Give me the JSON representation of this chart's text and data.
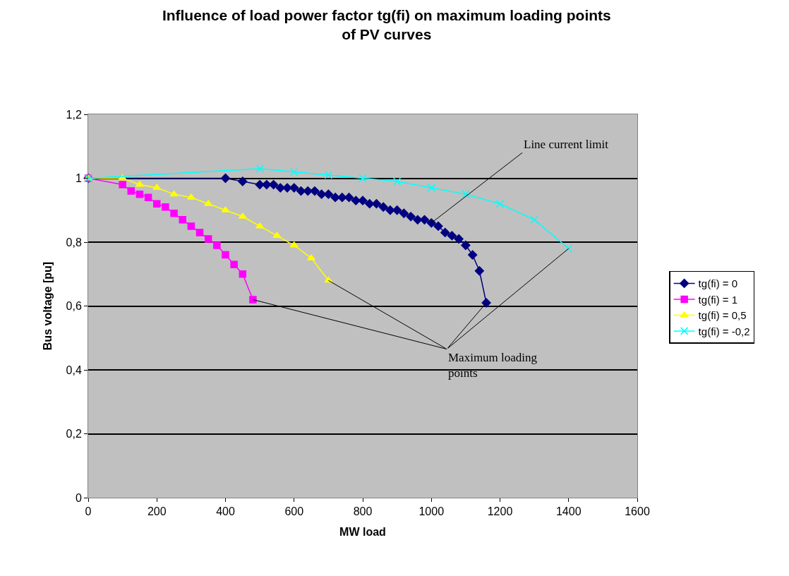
{
  "chart_data": {
    "type": "line",
    "title": "Influence of load power factor tg(fi) on maximum loading points\nof PV curves",
    "xlabel": "MW load",
    "ylabel": "Bus voltage [pu]",
    "xlim": [
      0,
      1600
    ],
    "xticks": [
      0,
      200,
      400,
      600,
      800,
      1000,
      1200,
      1400,
      1600
    ],
    "ylim": [
      0,
      1.2
    ],
    "yticks": [
      0,
      {
        "value": 0.2,
        "label": "0,2"
      },
      {
        "value": 0.4,
        "label": "0,4"
      },
      {
        "value": 0.6,
        "label": "0,6"
      },
      {
        "value": 0.8,
        "label": "0,8"
      },
      1,
      {
        "value": 1.2,
        "label": "1,2"
      }
    ],
    "grid": "y",
    "legend": "right",
    "series": [
      {
        "name": "tg(fi) = 0",
        "color": "#000080",
        "marker": "diamond",
        "x": [
          0,
          400,
          450,
          500,
          520,
          540,
          560,
          580,
          600,
          620,
          640,
          660,
          680,
          700,
          720,
          740,
          760,
          780,
          800,
          820,
          840,
          860,
          880,
          900,
          920,
          940,
          960,
          980,
          1000,
          1020,
          1040,
          1060,
          1080,
          1100,
          1120,
          1140,
          1160
        ],
        "values": [
          1.0,
          1.0,
          0.99,
          0.98,
          0.98,
          0.98,
          0.97,
          0.97,
          0.97,
          0.96,
          0.96,
          0.96,
          0.95,
          0.95,
          0.94,
          0.94,
          0.94,
          0.93,
          0.93,
          0.92,
          0.92,
          0.91,
          0.9,
          0.9,
          0.89,
          0.88,
          0.87,
          0.87,
          0.86,
          0.85,
          0.83,
          0.82,
          0.81,
          0.79,
          0.76,
          0.71,
          0.61
        ]
      },
      {
        "name": "tg(fi) = 1",
        "color": "#ff00ff",
        "marker": "square",
        "x": [
          0,
          100,
          125,
          150,
          175,
          200,
          225,
          250,
          275,
          300,
          325,
          350,
          375,
          400,
          425,
          450,
          480
        ],
        "values": [
          1.0,
          0.98,
          0.96,
          0.95,
          0.94,
          0.92,
          0.91,
          0.89,
          0.87,
          0.85,
          0.83,
          0.81,
          0.79,
          0.76,
          0.73,
          0.7,
          0.62
        ]
      },
      {
        "name": "tg(fi) = 0,5",
        "color": "#ffff00",
        "marker": "triangle",
        "x": [
          0,
          100,
          150,
          200,
          250,
          300,
          350,
          400,
          450,
          500,
          550,
          600,
          650,
          700
        ],
        "values": [
          1.0,
          1.0,
          0.98,
          0.97,
          0.95,
          0.94,
          0.92,
          0.9,
          0.88,
          0.85,
          0.82,
          0.79,
          0.75,
          0.68
        ]
      },
      {
        "name": "tg(fi) = -0,2",
        "color": "#00ffff",
        "marker": "cross",
        "x": [
          0,
          500,
          600,
          700,
          800,
          900,
          1000,
          1100,
          1200,
          1300,
          1400
        ],
        "values": [
          1.0,
          1.03,
          1.02,
          1.01,
          1.0,
          0.99,
          0.97,
          0.95,
          0.92,
          0.87,
          0.78
        ]
      }
    ],
    "annotations": [
      {
        "text": "Line current limit",
        "x": 1000,
        "y": 0.86
      },
      {
        "text": "Maximum loading points",
        "x": 480,
        "y": 0.62
      }
    ]
  }
}
